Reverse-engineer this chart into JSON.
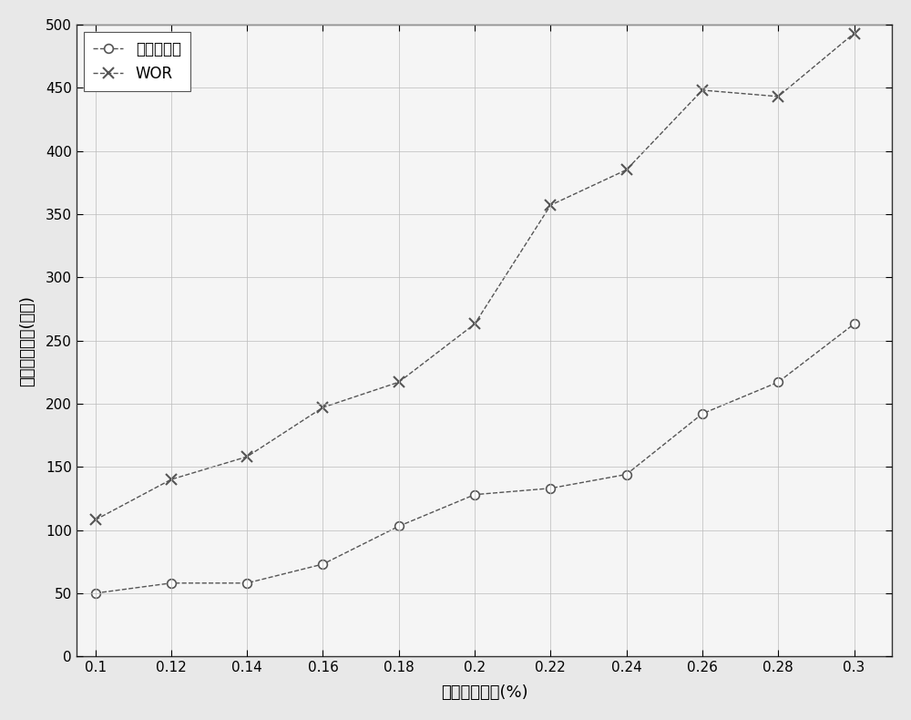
{
  "x": [
    0.1,
    0.12,
    0.14,
    0.16,
    0.18,
    0.2,
    0.22,
    0.24,
    0.26,
    0.28,
    0.3
  ],
  "y_invention": [
    50,
    58,
    58,
    73,
    103,
    128,
    133,
    144,
    192,
    217,
    263
  ],
  "y_wor": [
    108,
    140,
    158,
    197,
    217,
    263,
    357,
    385,
    448,
    443,
    493
  ],
  "xlabel": "数据产生概率(%)",
  "ylabel": "平均传输时延(时隙)",
  "legend_invention": "本发明方法",
  "legend_wor": "WOR",
  "xlim": [
    0.095,
    0.31
  ],
  "ylim": [
    0,
    500
  ],
  "xticks": [
    0.1,
    0.12,
    0.14,
    0.16,
    0.18,
    0.2,
    0.22,
    0.24,
    0.26,
    0.28,
    0.3
  ],
  "yticks": [
    0,
    50,
    100,
    150,
    200,
    250,
    300,
    350,
    400,
    450,
    500
  ],
  "line_color": "#555555",
  "bg_color": "#f0f0f0",
  "grid_color": "#bbbbbb",
  "figsize": [
    10.0,
    7.9
  ],
  "dpi": 100
}
